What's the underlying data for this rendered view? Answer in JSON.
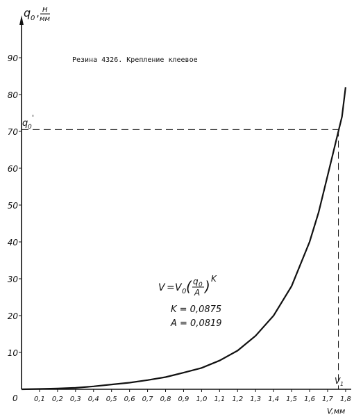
{
  "chart_data": {
    "type": "line",
    "title": "Резина 4326. Крепление клеевое",
    "ylabel_main": "q",
    "ylabel_sub": "0",
    "ylabel_unit_num": "Н",
    "ylabel_unit_den": "мм",
    "xlabel": "V,мм",
    "xlim": [
      0,
      1.8
    ],
    "ylim": [
      0,
      100
    ],
    "x_ticks": [
      {
        "v": 0,
        "label": "0"
      },
      {
        "v": 0.1,
        "label": "0,1"
      },
      {
        "v": 0.2,
        "label": "0,2"
      },
      {
        "v": 0.3,
        "label": "0,3"
      },
      {
        "v": 0.4,
        "label": "0,4"
      },
      {
        "v": 0.5,
        "label": "0,5"
      },
      {
        "v": 0.6,
        "label": "0,6"
      },
      {
        "v": 0.7,
        "label": "0,7"
      },
      {
        "v": 0.8,
        "label": "0,8"
      },
      {
        "v": 0.9,
        "label": "0,9"
      },
      {
        "v": 1.0,
        "label": "1,0"
      },
      {
        "v": 1.1,
        "label": "1,1"
      },
      {
        "v": 1.2,
        "label": "1,2"
      },
      {
        "v": 1.3,
        "label": "1,3"
      },
      {
        "v": 1.4,
        "label": "1,4"
      },
      {
        "v": 1.5,
        "label": "1,5"
      },
      {
        "v": 1.6,
        "label": "1,6"
      },
      {
        "v": 1.7,
        "label": "1,7"
      },
      {
        "v": 1.8,
        "label": "1,8"
      }
    ],
    "y_ticks": [
      {
        "v": 10,
        "label": "10"
      },
      {
        "v": 20,
        "label": "20"
      },
      {
        "v": 30,
        "label": "30"
      },
      {
        "v": 40,
        "label": "40"
      },
      {
        "v": 50,
        "label": "50"
      },
      {
        "v": 60,
        "label": "60"
      },
      {
        "v": 70,
        "label": "70"
      },
      {
        "v": 80,
        "label": "80"
      },
      {
        "v": 90,
        "label": "90"
      }
    ],
    "series": [
      {
        "x": [
          0,
          0.1,
          0.2,
          0.3,
          0.4,
          0.5,
          0.6,
          0.7,
          0.8,
          0.9,
          1.0,
          1.1,
          1.2,
          1.3,
          1.4,
          1.5,
          1.6,
          1.65,
          1.7,
          1.75,
          1.78,
          1.8
        ],
        "y": [
          0,
          0.1,
          0.2,
          0.4,
          0.8,
          1.3,
          1.8,
          2.5,
          3.3,
          4.5,
          5.8,
          7.8,
          10.5,
          14.5,
          20,
          28,
          40,
          48,
          58,
          68,
          74,
          82
        ]
      }
    ],
    "reference": {
      "y": 70.5,
      "x": 1.76,
      "y_label_main": "q",
      "y_label_sub": "0",
      "y_label_prime": "'",
      "x_label_main": "V",
      "x_label_sub": "1"
    },
    "formula": {
      "lhs": "V",
      "rhs_main": "V",
      "rhs_sub": "0",
      "frac_num": "q",
      "frac_num_sub": "0",
      "frac_den": "A",
      "exponent": "K",
      "k_line": "K = 0,0875",
      "a_line": "A = 0,0819"
    }
  }
}
